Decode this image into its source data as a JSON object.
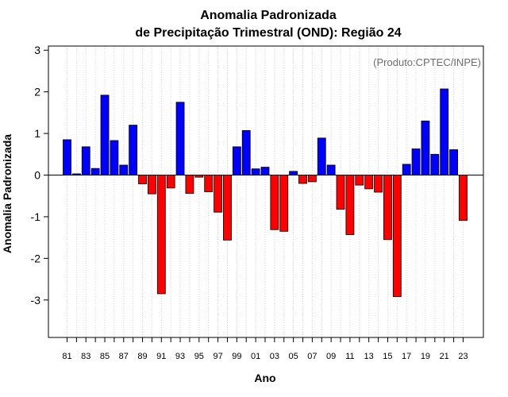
{
  "chart_data": {
    "type": "bar",
    "title": [
      "Anomalia Padronizada",
      "de Precipitação Trimestral (OND): Região 24"
    ],
    "xlabel": "Ano",
    "ylabel": "Anomalia Padronizada",
    "annotation": "(Produto:CPTEC/INPE)",
    "ylim": [
      -3.9,
      3.1
    ],
    "yticks": [
      -3,
      -2,
      -1,
      0,
      1,
      2,
      3
    ],
    "categories": [
      "81",
      "82",
      "83",
      "84",
      "85",
      "86",
      "87",
      "88",
      "89",
      "90",
      "91",
      "92",
      "93",
      "94",
      "95",
      "96",
      "97",
      "98",
      "99",
      "00",
      "01",
      "02",
      "03",
      "04",
      "05",
      "06",
      "07",
      "08",
      "09",
      "10",
      "11",
      "12",
      "13",
      "14",
      "15",
      "16",
      "17",
      "18",
      "19",
      "20",
      "21",
      "22",
      "23"
    ],
    "xtick_labels": [
      "81",
      "83",
      "85",
      "87",
      "89",
      "91",
      "93",
      "95",
      "97",
      "99",
      "01",
      "03",
      "05",
      "07",
      "09",
      "11",
      "13",
      "15",
      "17",
      "19",
      "21",
      "23"
    ],
    "values": [
      0.85,
      0.03,
      0.68,
      0.16,
      1.92,
      0.83,
      0.24,
      1.2,
      -0.21,
      -0.45,
      -2.85,
      -0.31,
      1.75,
      -0.44,
      -0.05,
      -0.4,
      -0.89,
      -1.56,
      0.68,
      1.07,
      0.15,
      0.19,
      -1.31,
      -1.35,
      0.09,
      -0.2,
      -0.16,
      0.89,
      0.24,
      -0.82,
      -1.43,
      -0.24,
      -0.33,
      -0.41,
      -1.55,
      -2.92,
      0.26,
      0.63,
      1.3,
      0.5,
      2.07,
      0.61,
      -1.09
    ],
    "colors": {
      "positive": "#0000ff",
      "negative": "#ff0000",
      "grid": "#d3d3d3",
      "axis": "#000000"
    },
    "grid": true,
    "legend": "none"
  }
}
